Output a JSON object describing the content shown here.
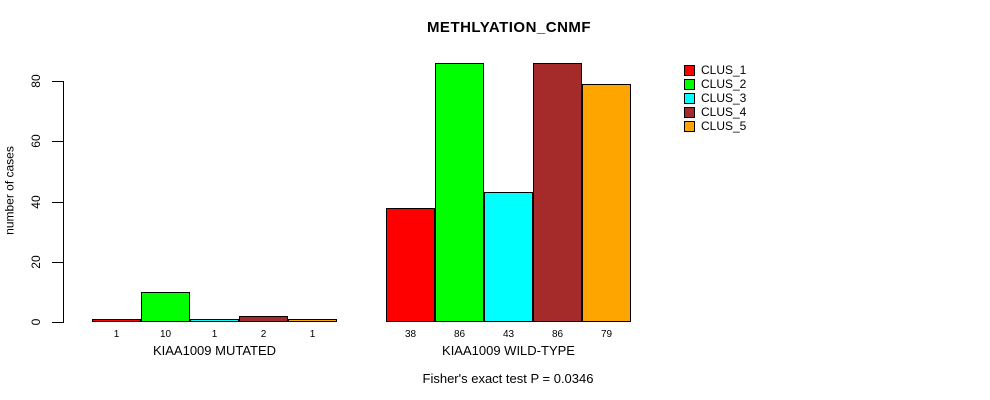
{
  "figure": {
    "background": "#ffffff",
    "text_color": "#000000"
  },
  "chart_data": {
    "type": "bar",
    "title": "METHLYATION_CNMF",
    "xlabel": "",
    "ylabel": "number of cases",
    "ylim": [
      0,
      86
    ],
    "yticks": [
      0,
      20,
      40,
      60,
      80
    ],
    "grid": false,
    "legend_position": "right",
    "categories": [
      "KIAA1009 MUTATED",
      "KIAA1009 WILD-TYPE"
    ],
    "series": [
      {
        "name": "CLUS_1",
        "color": "#FF0000",
        "values": [
          1,
          38
        ]
      },
      {
        "name": "CLUS_2",
        "color": "#00FF00",
        "values": [
          10,
          86
        ]
      },
      {
        "name": "CLUS_3",
        "color": "#00FFFF",
        "values": [
          1,
          43
        ]
      },
      {
        "name": "CLUS_4",
        "color": "#A52A2A",
        "values": [
          2,
          86
        ]
      },
      {
        "name": "CLUS_5",
        "color": "#FFA500",
        "values": [
          1,
          79
        ]
      }
    ],
    "bar_value_labels": {
      "KIAA1009 MUTATED": [
        1,
        10,
        1,
        2,
        1
      ],
      "KIAA1009 WILD-TYPE": [
        38,
        86,
        43,
        86,
        79
      ]
    },
    "annotation": "Fisher's exact test P = 0.0346"
  }
}
